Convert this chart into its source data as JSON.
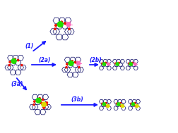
{
  "bg_color": "#ffffff",
  "arrow_color": "#1a1aff",
  "labels": [
    "(1)",
    "(2a)",
    "(2b)",
    "(3a)",
    "(3b)"
  ],
  "label_color": "#1a1aff",
  "label_fontsize": 5.5,
  "fig_width": 2.52,
  "fig_height": 1.89,
  "dpi": 100,
  "green_color": "#22dd00",
  "pink_color": "#ff66bb",
  "yellow_color": "#dddd00",
  "red_color": "#ee1100",
  "navy_color": "#1a1a6e",
  "gray_color": "#aaaaaa",
  "bond_lw": 0.55,
  "ring_fill": "#e8e8f5"
}
